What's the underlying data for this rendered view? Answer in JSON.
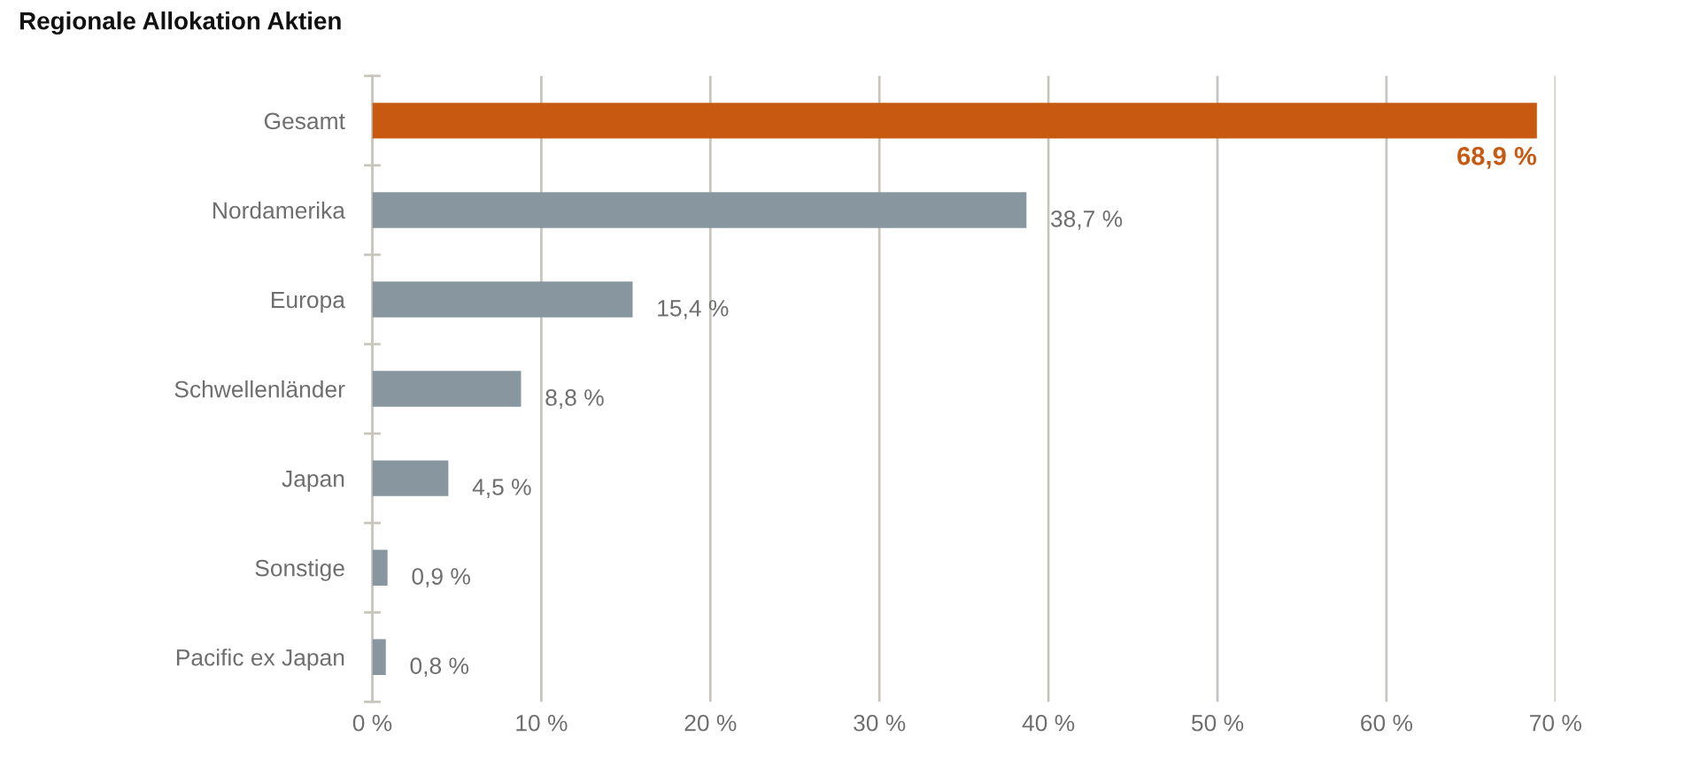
{
  "chart_data": {
    "type": "bar",
    "orientation": "horizontal",
    "title": "Regionale Allokation Aktien",
    "categories": [
      "Gesamt",
      "Nordamerika",
      "Europa",
      "Schwellenländer",
      "Japan",
      "Sonstige",
      "Pacific ex Japan"
    ],
    "values": [
      68.9,
      38.7,
      15.4,
      8.8,
      4.5,
      0.9,
      0.8
    ],
    "colors": [
      "#c75a10",
      "#8896a0",
      "#8896a0",
      "#8896a0",
      "#8896a0",
      "#8896a0",
      "#8896a0"
    ],
    "value_labels": [
      "68,9 %",
      "38,7 %",
      "15,4 %",
      "8,8 %",
      "4,5 %",
      "0,9 %",
      "0,8 %"
    ],
    "xlim": [
      0,
      70
    ],
    "xticks": [
      {
        "value": 0,
        "label": "0 %"
      },
      {
        "value": 10,
        "label": "10 %"
      },
      {
        "value": 20,
        "label": "20 %"
      },
      {
        "value": 30,
        "label": "30 %"
      },
      {
        "value": 40,
        "label": "40 %"
      },
      {
        "value": 50,
        "label": "50 %"
      },
      {
        "value": 60,
        "label": "60 %"
      },
      {
        "value": 70,
        "label": "70 %"
      }
    ],
    "grid": "x"
  }
}
